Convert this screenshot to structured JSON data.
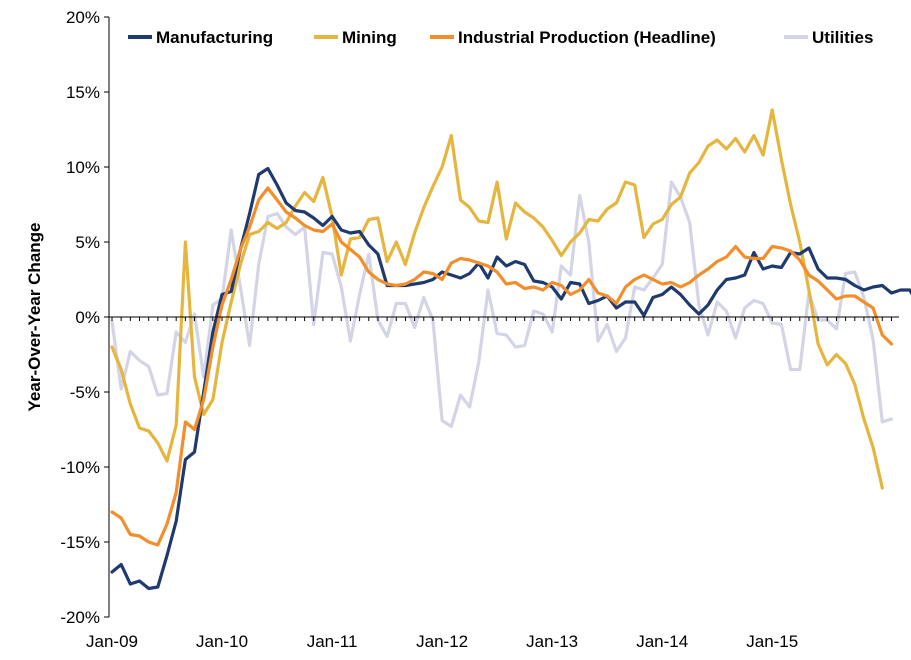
{
  "chart_data": {
    "type": "line",
    "title": "",
    "xlabel": "",
    "ylabel": "Year-Over-Year Change",
    "ylim": [
      -20,
      20
    ],
    "y_ticks": [
      20,
      15,
      10,
      5,
      0,
      -5,
      -10,
      -15,
      -20
    ],
    "y_tick_labels": [
      "20%",
      "15%",
      "10%",
      "5%",
      "0%",
      "-5%",
      "-10%",
      "-15%",
      "-20%"
    ],
    "x_start": "Jan-09",
    "x_ticks": [
      "Jan-09",
      "Jan-10",
      "Jan-11",
      "Jan-12",
      "Jan-13",
      "Jan-14",
      "Jan-15"
    ],
    "legend_position": "top",
    "grid": false,
    "series": [
      {
        "name": "Manufacturing",
        "color": "#1f3a6e",
        "values": [
          -17.0,
          -16.5,
          -17.8,
          -17.6,
          -18.1,
          -18.0,
          -15.9,
          -13.6,
          -9.5,
          -9.0,
          -5.0,
          -1.0,
          1.5,
          1.7,
          4.5,
          6.9,
          9.5,
          9.9,
          8.8,
          7.6,
          7.1,
          7.0,
          6.6,
          6.1,
          6.7,
          5.8,
          5.6,
          5.7,
          4.8,
          4.2,
          2.1,
          2.1,
          2.1,
          2.2,
          2.3,
          2.5,
          3.0,
          2.8,
          2.6,
          2.9,
          3.6,
          2.6,
          4.0,
          3.4,
          3.7,
          3.5,
          2.4,
          2.3,
          2.0,
          1.2,
          2.3,
          2.2,
          0.9,
          1.1,
          1.4,
          0.6,
          1.0,
          1.0,
          0.1,
          1.3,
          1.5,
          2.0,
          1.5,
          0.8,
          0.2,
          0.8,
          1.8,
          2.5,
          2.6,
          2.8,
          4.3,
          3.2,
          3.4,
          3.3,
          4.3,
          4.2,
          4.6,
          3.2,
          2.6,
          2.6,
          2.5,
          2.1,
          1.8,
          2.0,
          2.1,
          1.6,
          1.8,
          1.8,
          0.7,
          0.7
        ]
      },
      {
        "name": "Mining",
        "color": "#e6b53e",
        "values": [
          -2.0,
          -3.5,
          -5.8,
          -7.4,
          -7.6,
          -8.4,
          -9.6,
          -7.2,
          5.0,
          -4.0,
          -6.5,
          -5.5,
          -1.7,
          1.0,
          3.5,
          5.5,
          5.7,
          6.3,
          5.9,
          6.3,
          7.4,
          8.3,
          7.7,
          9.3,
          6.7,
          2.8,
          5.2,
          5.3,
          6.5,
          6.6,
          3.7,
          5.0,
          3.5,
          5.6,
          7.3,
          8.7,
          10.0,
          12.1,
          7.8,
          7.3,
          6.4,
          6.3,
          9.0,
          5.2,
          7.6,
          7.0,
          6.6,
          6.0,
          5.1,
          4.1,
          5.0,
          5.6,
          6.5,
          6.4,
          7.2,
          7.6,
          9.0,
          8.8,
          5.3,
          6.2,
          6.5,
          7.5,
          8.0,
          9.6,
          10.3,
          11.4,
          11.8,
          11.2,
          11.9,
          11.0,
          12.1,
          10.8,
          13.8,
          10.5,
          7.5,
          5.0,
          1.8,
          -1.8,
          -3.2,
          -2.5,
          -3.1,
          -4.5,
          -6.8,
          -8.7,
          -11.4
        ]
      },
      {
        "name": "Industrial Production (Headline)",
        "color": "#f28e2b",
        "values": [
          -13.0,
          -13.4,
          -14.5,
          -14.6,
          -15.0,
          -15.2,
          -13.8,
          -11.7,
          -7.0,
          -7.5,
          -5.5,
          -2.0,
          0.8,
          2.5,
          4.5,
          6.0,
          7.8,
          8.6,
          7.8,
          7.0,
          6.6,
          6.1,
          5.8,
          5.7,
          6.2,
          5.0,
          4.5,
          4.0,
          3.0,
          2.5,
          2.2,
          2.1,
          2.2,
          2.5,
          3.0,
          2.9,
          2.5,
          3.6,
          3.9,
          3.8,
          3.6,
          3.4,
          3.0,
          2.2,
          2.3,
          1.9,
          2.0,
          1.8,
          2.3,
          2.1,
          1.5,
          1.8,
          2.5,
          1.6,
          1.4,
          0.9,
          2.0,
          2.5,
          2.8,
          2.5,
          2.2,
          2.3,
          2.0,
          2.3,
          2.8,
          3.2,
          3.7,
          4.0,
          4.7,
          4.0,
          3.9,
          3.9,
          4.7,
          4.6,
          4.4,
          3.8,
          2.8,
          2.4,
          1.8,
          1.2,
          1.4,
          1.4,
          1.0,
          0.6,
          -1.2,
          -1.8
        ]
      },
      {
        "name": "Utilities",
        "color": "#d3d5e6",
        "values": [
          -0.3,
          -4.8,
          -2.3,
          -2.9,
          -3.3,
          -5.2,
          -5.1,
          -1.0,
          -1.7,
          0.2,
          -4.0,
          0.8,
          1.2,
          5.8,
          2.0,
          -1.9,
          3.5,
          6.7,
          6.9,
          6.0,
          5.5,
          6.0,
          -0.5,
          4.3,
          4.2,
          2.0,
          -1.6,
          1.5,
          4.2,
          -0.2,
          -1.3,
          0.9,
          0.9,
          -0.7,
          1.3,
          -0.2,
          -6.9,
          -7.3,
          -5.2,
          -6.0,
          -3.0,
          1.8,
          -1.1,
          -1.2,
          -2.0,
          -1.9,
          0.4,
          0.2,
          -1.0,
          3.4,
          2.8,
          8.1,
          5.0,
          -1.6,
          -0.5,
          -2.3,
          -1.4,
          2.0,
          1.8,
          2.6,
          3.5,
          9.0,
          8.0,
          6.3,
          0.8,
          -1.2,
          1.0,
          0.4,
          -1.4,
          0.6,
          1.1,
          0.9,
          -0.4,
          -0.5,
          -3.5,
          -3.5,
          1.6,
          -0.2,
          -0.2,
          -0.8,
          2.9,
          3.0,
          1.3,
          -1.5,
          -7.0,
          -6.8
        ]
      }
    ]
  }
}
